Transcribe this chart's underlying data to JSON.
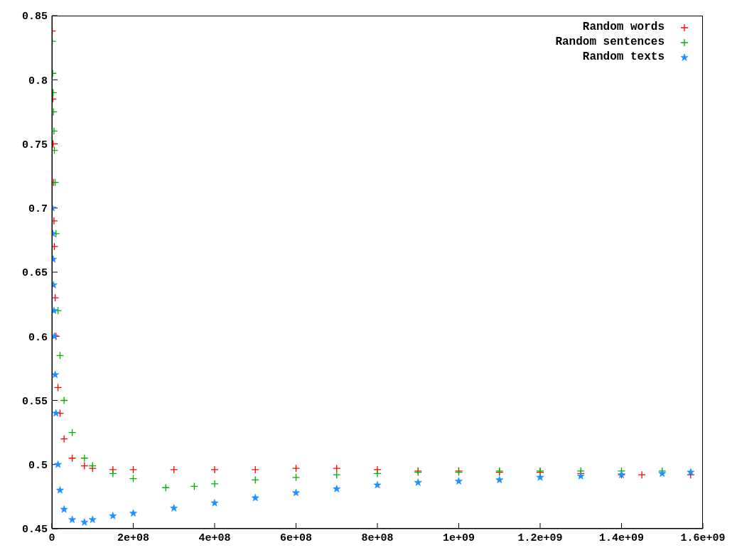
{
  "chart_data": {
    "type": "scatter",
    "xlim": [
      0,
      1600000000
    ],
    "xticks": [
      0,
      {
        "value": 200000000,
        "label": "2e+08"
      },
      {
        "value": 400000000,
        "label": "4e+08"
      },
      {
        "value": 600000000,
        "label": "6e+08"
      },
      {
        "value": 800000000,
        "label": "8e+08"
      },
      {
        "value": 1000000000,
        "label": "1e+09"
      },
      {
        "value": 1200000000,
        "label": "1.2e+09"
      },
      {
        "value": 1400000000,
        "label": "1.4e+09"
      },
      {
        "value": 1600000000,
        "label": "1.6e+09"
      }
    ],
    "ylim": [
      0.45,
      0.85
    ],
    "yticks": [
      0.45,
      0.5,
      0.55,
      0.6,
      0.65,
      0.7,
      0.75,
      0.8,
      0.85
    ],
    "legend": "top right",
    "grid": false,
    "series": [
      {
        "name": "Random words",
        "color": "#ff0000",
        "marker": "cross",
        "x": [
          1000000,
          2000000,
          3000000,
          4000000,
          5000000,
          6000000,
          8000000,
          10000000,
          15000000,
          20000000,
          30000000,
          50000000,
          80000000,
          100000000,
          150000000,
          200000000,
          300000000,
          400000000,
          500000000,
          600000000,
          700000000,
          800000000,
          900000000,
          1000000000,
          1100000000,
          1200000000,
          1300000000,
          1400000000,
          1450000000,
          1570000000
        ],
        "values": [
          0.838,
          0.785,
          0.75,
          0.72,
          0.69,
          0.67,
          0.63,
          0.6,
          0.56,
          0.54,
          0.52,
          0.505,
          0.499,
          0.497,
          0.496,
          0.496,
          0.496,
          0.496,
          0.496,
          0.497,
          0.497,
          0.496,
          0.495,
          0.495,
          0.494,
          0.494,
          0.493,
          0.492,
          0.492,
          0.492
        ]
      },
      {
        "name": "Random sentences",
        "color": "#00b000",
        "marker": "cross",
        "x": [
          1000000,
          2000000,
          3000000,
          4000000,
          5000000,
          6000000,
          8000000,
          10000000,
          15000000,
          20000000,
          30000000,
          50000000,
          80000000,
          100000000,
          150000000,
          200000000,
          280000000,
          350000000,
          400000000,
          500000000,
          600000000,
          700000000,
          800000000,
          900000000,
          1000000000,
          1100000000,
          1200000000,
          1300000000,
          1400000000,
          1500000000
        ],
        "values": [
          0.83,
          0.805,
          0.79,
          0.775,
          0.76,
          0.745,
          0.72,
          0.68,
          0.62,
          0.585,
          0.55,
          0.525,
          0.505,
          0.499,
          0.493,
          0.489,
          0.482,
          0.483,
          0.485,
          0.488,
          0.49,
          0.492,
          0.493,
          0.494,
          0.494,
          0.495,
          0.495,
          0.495,
          0.495,
          0.495
        ]
      },
      {
        "name": "Random texts",
        "color": "#1e90ff",
        "marker": "star",
        "x": [
          1000000,
          2000000,
          3000000,
          4000000,
          5000000,
          6000000,
          8000000,
          10000000,
          15000000,
          20000000,
          30000000,
          50000000,
          80000000,
          100000000,
          150000000,
          200000000,
          300000000,
          400000000,
          500000000,
          600000000,
          700000000,
          800000000,
          900000000,
          1000000000,
          1100000000,
          1200000000,
          1300000000,
          1400000000,
          1500000000,
          1570000000
        ],
        "values": [
          0.7,
          0.68,
          0.66,
          0.64,
          0.62,
          0.6,
          0.57,
          0.54,
          0.5,
          0.48,
          0.465,
          0.457,
          0.455,
          0.457,
          0.46,
          0.462,
          0.466,
          0.47,
          0.474,
          0.478,
          0.481,
          0.484,
          0.486,
          0.487,
          0.488,
          0.49,
          0.491,
          0.492,
          0.493,
          0.494
        ]
      }
    ]
  }
}
